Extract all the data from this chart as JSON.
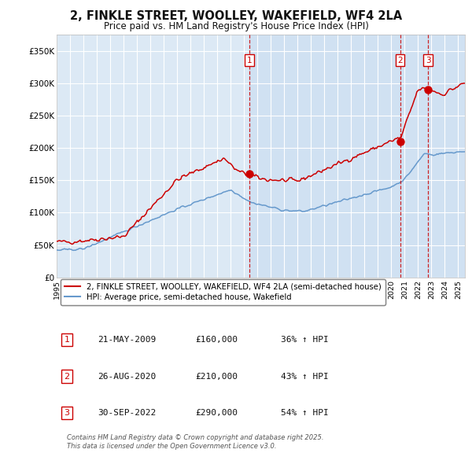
{
  "title": "2, FINKLE STREET, WOOLLEY, WAKEFIELD, WF4 2LA",
  "subtitle": "Price paid vs. HM Land Registry's House Price Index (HPI)",
  "title_fontsize": 10.5,
  "subtitle_fontsize": 8.5,
  "background_color": "#ffffff",
  "plot_bg_color": "#dce9f5",
  "grid_color": "#ffffff",
  "ylabel_ticks": [
    "£0",
    "£50K",
    "£100K",
    "£150K",
    "£200K",
    "£250K",
    "£300K",
    "£350K"
  ],
  "ylabel_values": [
    0,
    50000,
    100000,
    150000,
    200000,
    250000,
    300000,
    350000
  ],
  "ylim": [
    0,
    375000
  ],
  "xlim_start": 1995.0,
  "xlim_end": 2025.5,
  "red_line_color": "#cc0000",
  "blue_line_color": "#6699cc",
  "purchase_dates": [
    2009.388,
    2020.654,
    2022.747
  ],
  "purchase_prices": [
    160000,
    210000,
    290000
  ],
  "purchase_labels": [
    "1",
    "2",
    "3"
  ],
  "vline_color": "#cc0000",
  "purchase_box_color": "#cc0000",
  "shade_start": 2009.388,
  "shade_end": 2025.5,
  "shade_color": "#c8dcf0",
  "shade_alpha": 0.6,
  "legend_red_label": "2, FINKLE STREET, WOOLLEY, WAKEFIELD, WF4 2LA (semi-detached house)",
  "legend_blue_label": "HPI: Average price, semi-detached house, Wakefield",
  "table_data": [
    [
      "1",
      "21-MAY-2009",
      "£160,000",
      "36% ↑ HPI"
    ],
    [
      "2",
      "26-AUG-2020",
      "£210,000",
      "43% ↑ HPI"
    ],
    [
      "3",
      "30-SEP-2022",
      "£290,000",
      "54% ↑ HPI"
    ]
  ],
  "footnote": "Contains HM Land Registry data © Crown copyright and database right 2025.\nThis data is licensed under the Open Government Licence v3.0.",
  "xtick_years": [
    1995,
    1996,
    1997,
    1998,
    1999,
    2000,
    2001,
    2002,
    2003,
    2004,
    2005,
    2006,
    2007,
    2008,
    2009,
    2010,
    2011,
    2012,
    2013,
    2014,
    2015,
    2016,
    2017,
    2018,
    2019,
    2020,
    2021,
    2022,
    2023,
    2024,
    2025
  ]
}
